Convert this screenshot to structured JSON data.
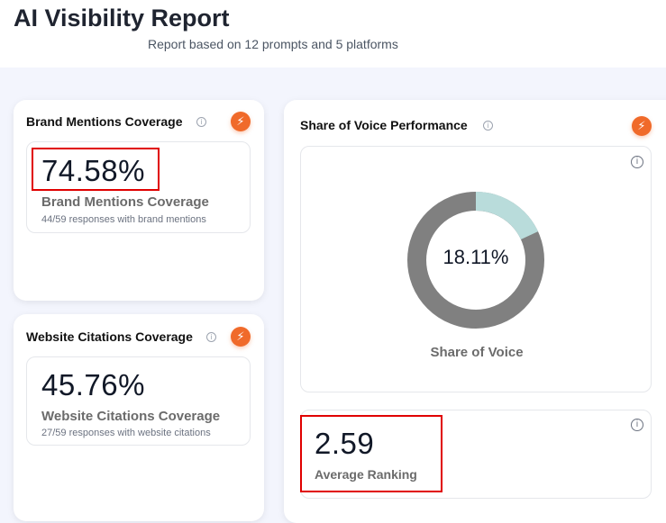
{
  "header": {
    "title": "AI Visibility Report",
    "subtitle": "Report based on 12 prompts and 5 platforms"
  },
  "brand_card": {
    "title": "Brand Mentions Coverage",
    "value": "74.58%",
    "label": "Brand Mentions Coverage",
    "detail": "44/59 responses with brand mentions"
  },
  "citations_card": {
    "title": "Website Citations Coverage",
    "value": "45.76%",
    "label": "Website Citations Coverage",
    "detail": "27/59 responses with website citations"
  },
  "sov_card": {
    "title": "Share of Voice Performance",
    "center": "18.11%",
    "label": "Share of Voice",
    "share_percent": 18.11,
    "colors": {
      "share": "#b9dcdb",
      "rest": "#808080"
    }
  },
  "ranking": {
    "value": "2.59",
    "label": "Average Ranking"
  },
  "icons": {
    "info": "i",
    "bolt": "⚡"
  }
}
